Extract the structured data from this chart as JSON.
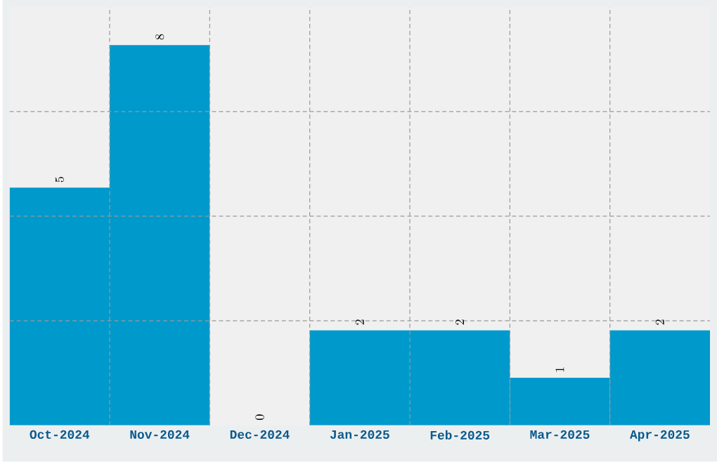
{
  "chart_data": {
    "type": "bar",
    "categories": [
      "Oct-2024",
      "Nov-2024",
      "Dec-2024",
      "Jan-2025",
      "Feb-2025",
      "Mar-2025",
      "Apr-2025"
    ],
    "values": [
      5,
      8,
      0,
      2,
      2,
      1,
      2
    ],
    "color": "#0099cc",
    "ylim": [
      0,
      8.8
    ],
    "yticks": [
      {
        "value": 2.2,
        "label": null
      },
      {
        "value": 4.4,
        "label": null
      },
      {
        "value": 6.6,
        "label": null
      }
    ],
    "tick_labels": "x",
    "grid": true,
    "data_labels": true
  }
}
